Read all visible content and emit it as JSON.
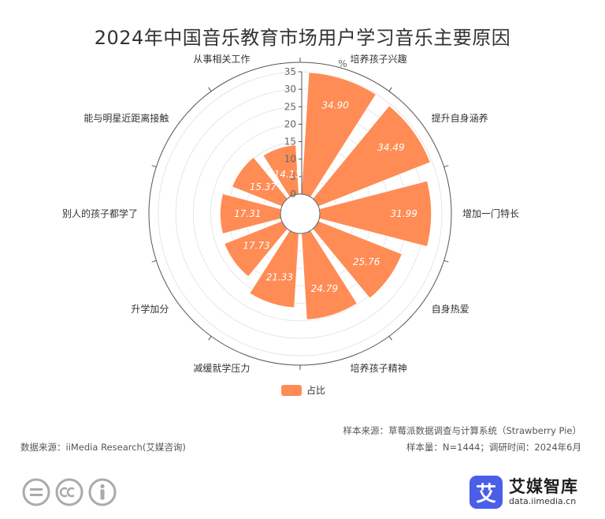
{
  "title": "2024年中国音乐教育市场用户学习音乐主要原因",
  "chart_data": {
    "type": "bar",
    "subtype": "polar-bar",
    "title": "2024年中国音乐教育市场用户学习音乐主要原因",
    "unit": "%",
    "categories": [
      "培养孩子兴趣",
      "提升自身涵养",
      "增加一门特长",
      "自身热爱",
      "培养孩子精神",
      "减缓就学压力",
      "升学加分",
      "别人的孩子都学了",
      "能与明星近距离接触",
      "从事相关工作"
    ],
    "series": [
      {
        "name": "占比",
        "values": [
          34.9,
          34.49,
          31.99,
          25.76,
          24.79,
          21.33,
          17.73,
          17.31,
          15.37,
          14.13
        ]
      }
    ],
    "value_labels": [
      "34.90",
      "34.49",
      "31.99",
      "25.76",
      "24.79",
      "21.33",
      "17.73",
      "17.31",
      "15.37",
      "14.13"
    ],
    "radial_axis": {
      "ticks": [
        "0",
        "5",
        "10",
        "15",
        "20",
        "25",
        "30",
        "35"
      ],
      "range": [
        0,
        35
      ]
    },
    "color": "#ff8c55",
    "legend": {
      "position": "bottom",
      "label": "占比"
    }
  },
  "footer": {
    "sample_source": "样本来源：草莓派数据调查与计算系统（Strawberry Pie）",
    "data_source": "数据来源：iiMedia Research(艾媒咨询)",
    "sample_info": "样本量：N=1444；调研时间：2024年6月"
  },
  "brand": {
    "logo": "艾",
    "name": "艾媒智库",
    "url": "data.iimedia.cn"
  },
  "license_icons": [
    "equals-icon",
    "cc-icon",
    "person-icon"
  ]
}
